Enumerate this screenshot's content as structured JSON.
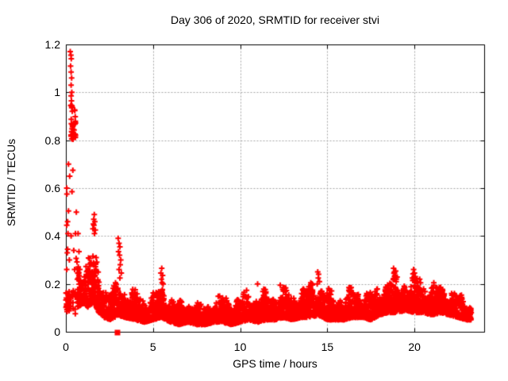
{
  "chart_data": {
    "type": "scatter",
    "title": "Day 306 of 2020, SRMTID for receiver stvi",
    "xlabel": "GPS time / hours",
    "ylabel": "SRMTID / TECUs",
    "xlim": [
      0,
      24
    ],
    "ylim": [
      0,
      1.2
    ],
    "xticks": [
      0,
      5,
      10,
      15,
      20
    ],
    "yticks": [
      0,
      0.2,
      0.4,
      0.6,
      0.8,
      1,
      1.2
    ],
    "ytick_labels": [
      "0",
      "0.2",
      "0.4",
      "0.6",
      "0.8",
      "1",
      "1.2"
    ],
    "grid": {
      "visible": true,
      "color": "#a6a6a6",
      "dash": [
        2,
        2
      ]
    },
    "axis_color": "#000000",
    "background": "#ffffff",
    "legend": "none",
    "marker": {
      "shape": "plus",
      "color": "#ff0000",
      "size": 7,
      "stroke_width": 2
    },
    "special_marker": {
      "shape": "filled-square",
      "color": "#ff0000",
      "size": 7,
      "point": [
        2.96,
        0
      ]
    },
    "seed": 20306,
    "band": {
      "comment": "dense scatter band envelope: [hour, min_value, max_value]",
      "range": [
        0.65,
        23.25
      ],
      "points_per_hour": 120,
      "bias_exponent": 1.7,
      "control_points": [
        [
          0.65,
          0.1,
          0.3
        ],
        [
          1.0,
          0.12,
          0.31
        ],
        [
          1.3,
          0.1,
          0.33
        ],
        [
          1.6,
          0.12,
          0.35
        ],
        [
          1.9,
          0.08,
          0.28
        ],
        [
          2.2,
          0.06,
          0.24
        ],
        [
          2.6,
          0.05,
          0.18
        ],
        [
          3.0,
          0.07,
          0.24
        ],
        [
          3.4,
          0.06,
          0.2
        ],
        [
          4.0,
          0.05,
          0.18
        ],
        [
          4.5,
          0.04,
          0.15
        ],
        [
          5.0,
          0.05,
          0.17
        ],
        [
          5.5,
          0.06,
          0.2
        ],
        [
          6.0,
          0.04,
          0.16
        ],
        [
          6.5,
          0.03,
          0.13
        ],
        [
          7.0,
          0.04,
          0.14
        ],
        [
          7.5,
          0.03,
          0.13
        ],
        [
          8.0,
          0.03,
          0.12
        ],
        [
          8.5,
          0.04,
          0.15
        ],
        [
          9.0,
          0.04,
          0.16
        ],
        [
          9.5,
          0.03,
          0.14
        ],
        [
          10.0,
          0.04,
          0.15
        ],
        [
          10.5,
          0.05,
          0.18
        ],
        [
          11.0,
          0.04,
          0.16
        ],
        [
          11.5,
          0.05,
          0.18
        ],
        [
          12.0,
          0.05,
          0.17
        ],
        [
          12.5,
          0.06,
          0.19
        ],
        [
          13.0,
          0.05,
          0.17
        ],
        [
          13.5,
          0.06,
          0.18
        ],
        [
          14.0,
          0.06,
          0.2
        ],
        [
          14.5,
          0.07,
          0.22
        ],
        [
          15.0,
          0.05,
          0.18
        ],
        [
          15.5,
          0.05,
          0.16
        ],
        [
          16.0,
          0.05,
          0.17
        ],
        [
          16.5,
          0.06,
          0.19
        ],
        [
          17.0,
          0.06,
          0.18
        ],
        [
          17.5,
          0.05,
          0.17
        ],
        [
          18.0,
          0.07,
          0.2
        ],
        [
          18.5,
          0.08,
          0.23
        ],
        [
          19.0,
          0.08,
          0.25
        ],
        [
          19.5,
          0.09,
          0.24
        ],
        [
          20.0,
          0.08,
          0.24
        ],
        [
          20.5,
          0.08,
          0.22
        ],
        [
          21.0,
          0.07,
          0.2
        ],
        [
          21.5,
          0.08,
          0.21
        ],
        [
          22.0,
          0.07,
          0.19
        ],
        [
          22.5,
          0.06,
          0.16
        ],
        [
          23.0,
          0.05,
          0.14
        ],
        [
          23.25,
          0.05,
          0.12
        ]
      ]
    },
    "clusters": [
      {
        "h": [
          0.28,
          0.56
        ],
        "v": [
          0.8,
          0.95
        ],
        "n": 38
      },
      {
        "h": [
          0.0,
          0.22
        ],
        "v": [
          0.08,
          0.17
        ],
        "n": 30
      },
      {
        "h": [
          0.25,
          0.55
        ],
        "v": [
          0.06,
          0.2
        ],
        "n": 14
      },
      {
        "h": [
          0.55,
          0.78
        ],
        "v": [
          0.15,
          0.32
        ],
        "n": 10
      }
    ],
    "outliers": [
      [
        0.25,
        1.17
      ],
      [
        0.29,
        1.155
      ],
      [
        0.31,
        1.14
      ],
      [
        0.27,
        1.11
      ],
      [
        0.3,
        1.085
      ],
      [
        0.33,
        1.06
      ],
      [
        0.3,
        1.03
      ],
      [
        0.34,
        1.0
      ],
      [
        0.3,
        0.985
      ],
      [
        0.32,
        0.965
      ],
      [
        0.28,
        0.945
      ],
      [
        0.15,
        0.7
      ],
      [
        0.4,
        0.675
      ],
      [
        0.22,
        0.65
      ],
      [
        0.05,
        0.6
      ],
      [
        0.35,
        0.585
      ],
      [
        0.06,
        0.575
      ],
      [
        0.15,
        0.505
      ],
      [
        0.6,
        0.5
      ],
      [
        0.1,
        0.46
      ],
      [
        0.05,
        0.445
      ],
      [
        0.12,
        0.41
      ],
      [
        0.55,
        0.41
      ],
      [
        0.3,
        0.4
      ],
      [
        0.7,
        0.41
      ],
      [
        0.1,
        0.345
      ],
      [
        0.45,
        0.34
      ],
      [
        0.75,
        0.335
      ],
      [
        0.08,
        0.33
      ],
      [
        0.2,
        0.3
      ],
      [
        0.05,
        0.26
      ],
      [
        0.5,
        0.26
      ],
      [
        0.65,
        0.26
      ],
      [
        0.8,
        0.26
      ],
      [
        0.72,
        0.225
      ],
      [
        1.55,
        0.43
      ],
      [
        1.6,
        0.47
      ],
      [
        1.61,
        0.445
      ],
      [
        1.63,
        0.49
      ],
      [
        1.66,
        0.46
      ],
      [
        1.69,
        0.425
      ],
      [
        1.64,
        0.41
      ],
      [
        1.58,
        0.45
      ],
      [
        3.0,
        0.39
      ],
      [
        3.05,
        0.37
      ],
      [
        3.1,
        0.355
      ],
      [
        3.02,
        0.335
      ],
      [
        3.08,
        0.32
      ],
      [
        3.15,
        0.3
      ],
      [
        3.12,
        0.28
      ],
      [
        3.05,
        0.26
      ],
      [
        3.18,
        0.245
      ],
      [
        3.1,
        0.225
      ],
      [
        5.5,
        0.265
      ],
      [
        5.45,
        0.245
      ],
      [
        5.55,
        0.235
      ],
      [
        5.48,
        0.22
      ],
      [
        5.52,
        0.205
      ],
      [
        5.58,
        0.2
      ],
      [
        11.0,
        0.2
      ],
      [
        12.3,
        0.195
      ],
      [
        14.45,
        0.25
      ],
      [
        14.5,
        0.24
      ],
      [
        14.48,
        0.225
      ],
      [
        14.55,
        0.21
      ],
      [
        14.42,
        0.2
      ],
      [
        18.8,
        0.265
      ],
      [
        18.85,
        0.25
      ],
      [
        18.9,
        0.235
      ],
      [
        18.78,
        0.22
      ],
      [
        18.95,
        0.21
      ],
      [
        19.95,
        0.26
      ],
      [
        20.0,
        0.245
      ],
      [
        20.05,
        0.23
      ],
      [
        19.9,
        0.215
      ],
      [
        20.3,
        0.22
      ],
      [
        20.35,
        0.205
      ]
    ]
  }
}
